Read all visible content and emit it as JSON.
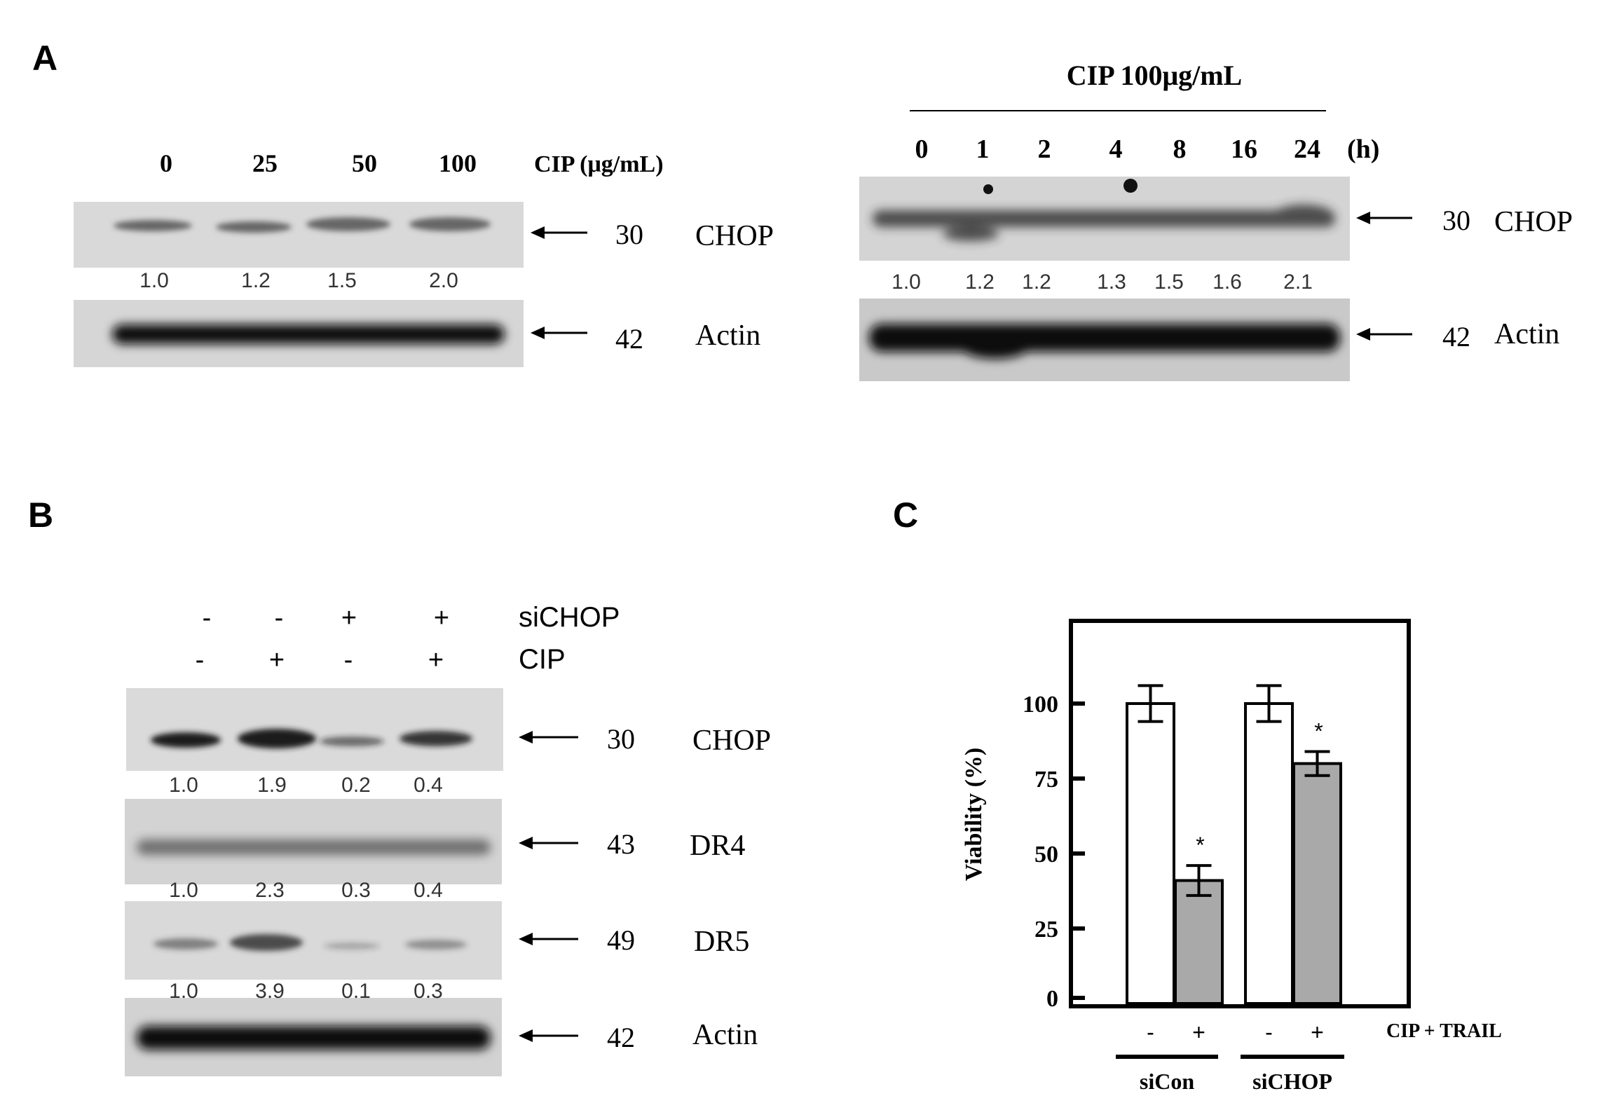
{
  "panels": {
    "A": {
      "letter": "A",
      "dose": {
        "lanes": [
          "0",
          "25",
          "50",
          "100"
        ],
        "unit_label": "CIP (μg/mL)",
        "blots": [
          {
            "kda": "30",
            "protein": "CHOP",
            "quant": [
              "1.0",
              "1.2",
              "1.5",
              "2.0"
            ]
          },
          {
            "kda": "42",
            "protein": "Actin",
            "quant": []
          }
        ]
      },
      "time": {
        "treatment": "CIP 100μg/mL",
        "lanes": [
          "0",
          "1",
          "2",
          "4",
          "8",
          "16",
          "24"
        ],
        "unit_label": "(h)",
        "blots": [
          {
            "kda": "30",
            "protein": "CHOP",
            "quant": [
              "1.0",
              "1.2",
              "1.2",
              "1.3",
              "1.5",
              "1.6",
              "2.1"
            ]
          },
          {
            "kda": "42",
            "protein": "Actin",
            "quant": []
          }
        ]
      }
    },
    "B": {
      "letter": "B",
      "conditions": [
        {
          "label": "siCHOP",
          "signs": [
            "-",
            "-",
            "+",
            "+"
          ]
        },
        {
          "label": "CIP",
          "signs": [
            "-",
            "+",
            "-",
            "+"
          ]
        }
      ],
      "blots": [
        {
          "kda": "30",
          "protein": "CHOP",
          "quant": [
            "1.0",
            "1.9",
            "0.2",
            "0.4"
          ]
        },
        {
          "kda": "43",
          "protein": "DR4",
          "quant": [
            "1.0",
            "2.3",
            "0.3",
            "0.4"
          ]
        },
        {
          "kda": "49",
          "protein": "DR5",
          "quant": [
            "1.0",
            "3.9",
            "0.1",
            "0.3"
          ]
        },
        {
          "kda": "42",
          "protein": "Actin",
          "quant": []
        }
      ]
    },
    "C": {
      "letter": "C"
    }
  },
  "chart_data": {
    "type": "bar",
    "ylabel": "Viability  (%)",
    "ylim": [
      0,
      100
    ],
    "yticks": [
      "0",
      "25",
      "50",
      "75",
      "100"
    ],
    "groups": [
      "siCon",
      "siCHOP"
    ],
    "treatment_label": "CIP + TRAIL",
    "bars": [
      {
        "group": "siCon",
        "sign": "-",
        "value": 100,
        "error": 6,
        "star": "",
        "color": "#ffffff"
      },
      {
        "group": "siCon",
        "sign": "+",
        "value": 41,
        "error": 5,
        "star": "*",
        "color": "#a9a9a9"
      },
      {
        "group": "siCHOP",
        "sign": "-",
        "value": 100,
        "error": 6,
        "star": "",
        "color": "#ffffff"
      },
      {
        "group": "siCHOP",
        "sign": "+",
        "value": 80,
        "error": 4,
        "star": "*",
        "color": "#a9a9a9"
      }
    ]
  }
}
